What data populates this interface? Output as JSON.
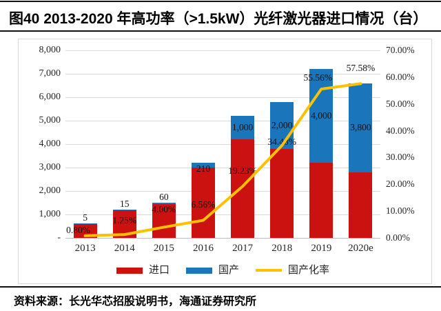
{
  "header": {
    "title": "图40 2013-2020 年高功率（>1.5kW）光纤激光器进口情况（台）"
  },
  "footer": {
    "source": "资料来源：长光华芯招股说明书，海通证券研究所"
  },
  "colors": {
    "import_red": "#CC1111",
    "domestic_blue": "#1B75BB",
    "rate_yellow": "#FFC000",
    "gridline": "#D9D9D9",
    "axis_text": "#262626",
    "divider_black": "#111111"
  },
  "chart_data": {
    "type": "bar",
    "subtype": "stacked-bars-with-line",
    "categories": [
      "2013",
      "2014",
      "2015",
      "2016",
      "2017",
      "2018",
      "2019",
      "2020e"
    ],
    "series": [
      {
        "key": "import",
        "name": "进口",
        "type": "bar",
        "color": "#CC1111",
        "values": [
          620,
          1185,
          1440,
          2990,
          4200,
          3800,
          3200,
          2800
        ]
      },
      {
        "key": "domestic",
        "name": "国产",
        "type": "bar",
        "color": "#1B75BB",
        "values": [
          5,
          15,
          60,
          210,
          1000,
          2000,
          4000,
          3800
        ],
        "labels": [
          "5",
          "15",
          "60",
          "210",
          "1,000",
          "2,000",
          "4,000",
          "3,800"
        ]
      },
      {
        "key": "localization-rate",
        "name": "国产化率",
        "type": "line",
        "color": "#FFC000",
        "values": [
          0.8,
          1.25,
          4.0,
          6.56,
          19.23,
          34.48,
          55.56,
          57.58
        ],
        "labels": [
          "0.80%",
          "1.25%",
          "4.00%",
          "6.56%",
          "19.23%",
          "34.48%",
          "55.56%",
          "57.58%"
        ]
      }
    ],
    "left_axis": {
      "min": 0,
      "max": 8000,
      "step": 1000,
      "tick_labels_top_to_bottom": [
        "8,000",
        "7,000",
        "6,000",
        "5,000",
        "4,000",
        "3,000",
        "2,000",
        "1,000",
        "-"
      ]
    },
    "right_axis": {
      "min": 0,
      "max": 70,
      "step": 10,
      "unit": "%",
      "tick_labels_top_to_bottom": [
        "70.00%",
        "60.00%",
        "50.00%",
        "40.00%",
        "30.00%",
        "20.00%",
        "10.00%",
        "0.00%"
      ]
    },
    "grid": true,
    "legend_position": "bottom",
    "legend": [
      "进口",
      "国产",
      "国产化率"
    ]
  }
}
